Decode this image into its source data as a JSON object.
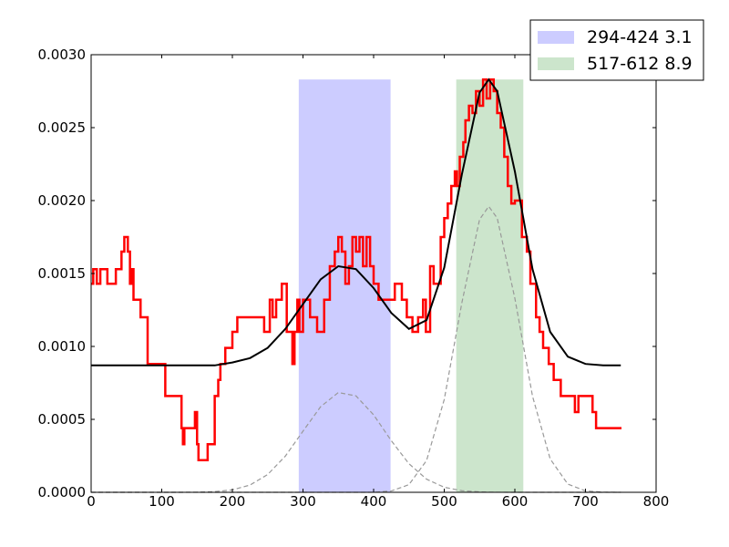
{
  "chart_data": {
    "type": "line",
    "xlim": [
      0,
      800
    ],
    "ylim": [
      0,
      0.003
    ],
    "xticks": [
      0,
      100,
      200,
      300,
      400,
      500,
      600,
      700,
      800
    ],
    "yticks": [
      {
        "value": 0,
        "label": "0.0000"
      },
      {
        "value": 0.0005,
        "label": "0.0005"
      },
      {
        "value": 0.001,
        "label": "0.0010"
      },
      {
        "value": 0.0015,
        "label": "0.0015"
      },
      {
        "value": 0.002,
        "label": "0.0020"
      },
      {
        "value": 0.0025,
        "label": "0.0025"
      },
      {
        "value": 0.003,
        "label": "0.0030"
      }
    ],
    "legend": "upper right",
    "spans": [
      {
        "name": "294-424 3.1",
        "x": [
          294,
          424
        ],
        "top": 0.00283,
        "color": "#ccccff"
      },
      {
        "name": "517-612 8.9",
        "x": [
          517,
          612
        ],
        "top": 0.00283,
        "color": "#cce5cc"
      }
    ],
    "series": [
      {
        "color": "#ff0000",
        "step": true,
        "x": [
          0,
          3,
          8,
          13,
          23,
          35,
          43,
          47,
          52,
          55,
          57,
          60,
          70,
          80,
          105,
          128,
          130,
          132,
          147,
          150,
          152,
          165,
          175,
          180,
          183,
          190,
          200,
          207,
          245,
          253,
          257,
          262,
          270,
          277,
          285,
          288,
          292,
          295,
          300,
          310,
          320,
          330,
          338,
          345,
          350,
          355,
          360,
          365,
          370,
          375,
          380,
          385,
          390,
          395,
          400,
          407,
          430,
          440,
          447,
          455,
          463,
          470,
          474,
          480,
          485,
          495,
          500,
          505,
          510,
          515,
          518,
          522,
          527,
          530,
          535,
          540,
          545,
          550,
          555,
          560,
          565,
          570,
          575,
          580,
          585,
          590,
          595,
          600,
          610,
          617,
          622,
          630,
          635,
          640,
          648,
          655,
          665,
          685,
          690,
          710,
          715,
          751
        ],
        "values": [
          0.00143,
          0.00153,
          0.00143,
          0.00153,
          0.00143,
          0.00153,
          0.00165,
          0.00175,
          0.00165,
          0.00143,
          0.00153,
          0.00132,
          0.0012,
          0.00088,
          0.00066,
          0.00044,
          0.00033,
          0.00044,
          0.00055,
          0.00033,
          0.00022,
          0.00033,
          0.00066,
          0.00077,
          0.00088,
          0.00099,
          0.0011,
          0.0012,
          0.0011,
          0.00132,
          0.0012,
          0.00132,
          0.00143,
          0.0011,
          0.00088,
          0.0011,
          0.00132,
          0.0011,
          0.00132,
          0.0012,
          0.0011,
          0.00132,
          0.00155,
          0.00165,
          0.00175,
          0.00165,
          0.00143,
          0.00155,
          0.00175,
          0.00165,
          0.00175,
          0.00155,
          0.00175,
          0.00155,
          0.00143,
          0.00132,
          0.00143,
          0.00132,
          0.0012,
          0.0011,
          0.0012,
          0.00132,
          0.0011,
          0.00155,
          0.00143,
          0.00175,
          0.00188,
          0.00198,
          0.0021,
          0.0022,
          0.0021,
          0.0023,
          0.0024,
          0.00255,
          0.00265,
          0.0026,
          0.00275,
          0.00265,
          0.00283,
          0.0027,
          0.00283,
          0.00275,
          0.0026,
          0.0025,
          0.0023,
          0.0021,
          0.00198,
          0.002,
          0.00175,
          0.00165,
          0.00143,
          0.0012,
          0.0011,
          0.00099,
          0.00088,
          0.00077,
          0.00066,
          0.00055,
          0.00066,
          0.00055,
          0.00044,
          0.00044
        ]
      },
      {
        "color": "#000000",
        "x": [
          0,
          25,
          50,
          75,
          100,
          125,
          150,
          175,
          200,
          225,
          250,
          275,
          300,
          325,
          350,
          375,
          400,
          425,
          450,
          475,
          500,
          525,
          550,
          563,
          575,
          600,
          625,
          650,
          675,
          700,
          725,
          750
        ],
        "values": [
          0.00087,
          0.00087,
          0.00087,
          0.00087,
          0.00087,
          0.00087,
          0.00087,
          0.00087,
          0.00089,
          0.00092,
          0.00099,
          0.00112,
          0.00129,
          0.00146,
          0.00155,
          0.00153,
          0.0014,
          0.00123,
          0.00112,
          0.00118,
          0.00154,
          0.00218,
          0.00274,
          0.00283,
          0.00275,
          0.0022,
          0.00153,
          0.0011,
          0.00093,
          0.00088,
          0.00087,
          0.00087
        ]
      },
      {
        "color": "#999999",
        "dashed": true,
        "x": [
          0,
          25,
          50,
          75,
          100,
          125,
          150,
          175,
          200,
          225,
          250,
          275,
          300,
          325,
          350,
          375,
          400,
          425,
          450,
          475,
          500,
          525,
          550,
          563,
          575,
          600,
          625,
          650,
          675,
          700,
          725,
          750
        ],
        "values": [
          0,
          0,
          0,
          0,
          0,
          0,
          7e-07,
          4.7e-06,
          1.69e-05,
          4.97e-05,
          0.000122,
          0.000248,
          0.000419,
          0.000587,
          0.000684,
          0.000661,
          0.000531,
          0.000354,
          0.000196,
          9.01e-05,
          3.44e-05,
          1.09e-05,
          2.9e-06,
          1.2e-06,
          5e-07,
          0,
          0,
          0,
          0,
          0,
          0,
          0
        ]
      },
      {
        "color": "#999999",
        "dashed": true,
        "x": [
          0,
          25,
          50,
          75,
          100,
          125,
          150,
          175,
          200,
          225,
          250,
          275,
          300,
          325,
          350,
          375,
          400,
          425,
          450,
          475,
          500,
          525,
          550,
          563,
          575,
          600,
          625,
          650,
          675,
          700,
          725,
          750
        ],
        "values": [
          0,
          0,
          0,
          0,
          0,
          0,
          0,
          0,
          0,
          0,
          0,
          0,
          0,
          0,
          0,
          0,
          3e-07,
          8.9e-06,
          5.25e-05,
          0.000218,
          0.000636,
          0.0013,
          0.00187,
          0.00196,
          0.00188,
          0.00133,
          0.000659,
          0.000229,
          5.6e-05,
          9.6e-06,
          1.1e-06,
          0
        ]
      }
    ]
  }
}
